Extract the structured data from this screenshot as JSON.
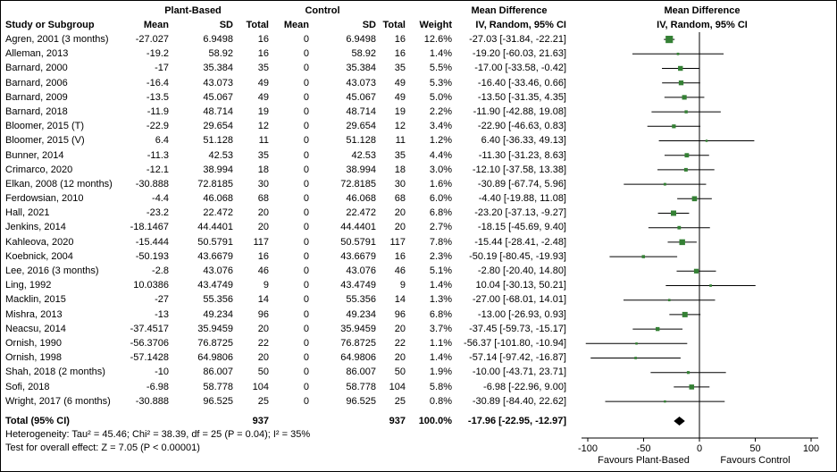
{
  "colors": {
    "background": "#ffffff",
    "marker_green": "#348034",
    "line_black": "#000000",
    "diamond_black": "#000000"
  },
  "header": {
    "group1": "Plant-Based",
    "group2": "Control",
    "mean_difference": "Mean Difference",
    "study_col": "Study or Subgroup",
    "mean": "Mean",
    "sd": "SD",
    "total": "Total",
    "weight": "Weight",
    "method_ci": "IV, Random, 95% CI"
  },
  "chart_data": {
    "type": "forest",
    "effect_measure": "Mean Difference",
    "method": "IV, Random, 95% CI",
    "axis": {
      "min": -100,
      "max": 100,
      "ticks": [
        -100,
        -50,
        0,
        50,
        100
      ],
      "left_label": "Favours Plant-Based",
      "right_label": "Favours Control"
    },
    "studies": [
      {
        "study": "Agren, 2001 (3 months)",
        "mean1": "-27.027",
        "sd1": "6.9498",
        "n1": "16",
        "mean2": "0",
        "sd2": "6.9498",
        "n2": "16",
        "weight": "12.6%",
        "w": 12.6,
        "est": -27.03,
        "lo": -31.84,
        "hi": -22.21,
        "ci_text": "-27.03 [-31.84, -22.21]"
      },
      {
        "study": "Alleman, 2013",
        "mean1": "-19.2",
        "sd1": "58.92",
        "n1": "16",
        "mean2": "0",
        "sd2": "58.92",
        "n2": "16",
        "weight": "1.4%",
        "w": 1.4,
        "est": -19.2,
        "lo": -60.03,
        "hi": 21.63,
        "ci_text": "-19.20 [-60.03, 21.63]"
      },
      {
        "study": "Barnard, 2000",
        "mean1": "-17",
        "sd1": "35.384",
        "n1": "35",
        "mean2": "0",
        "sd2": "35.384",
        "n2": "35",
        "weight": "5.5%",
        "w": 5.5,
        "est": -17.0,
        "lo": -33.58,
        "hi": -0.42,
        "ci_text": "-17.00 [-33.58, -0.42]"
      },
      {
        "study": "Barnard, 2006",
        "mean1": "-16.4",
        "sd1": "43.073",
        "n1": "49",
        "mean2": "0",
        "sd2": "43.073",
        "n2": "49",
        "weight": "5.3%",
        "w": 5.3,
        "est": -16.4,
        "lo": -33.46,
        "hi": 0.66,
        "ci_text": "-16.40 [-33.46, 0.66]"
      },
      {
        "study": "Barnard, 2009",
        "mean1": "-13.5",
        "sd1": "45.067",
        "n1": "49",
        "mean2": "0",
        "sd2": "45.067",
        "n2": "49",
        "weight": "5.0%",
        "w": 5.0,
        "est": -13.5,
        "lo": -31.35,
        "hi": 4.35,
        "ci_text": "-13.50 [-31.35, 4.35]"
      },
      {
        "study": "Barnard, 2018",
        "mean1": "-11.9",
        "sd1": "48.714",
        "n1": "19",
        "mean2": "0",
        "sd2": "48.714",
        "n2": "19",
        "weight": "2.2%",
        "w": 2.2,
        "est": -11.9,
        "lo": -42.88,
        "hi": 19.08,
        "ci_text": "-11.90 [-42.88, 19.08]"
      },
      {
        "study": "Bloomer, 2015 (T)",
        "mean1": "-22.9",
        "sd1": "29.654",
        "n1": "12",
        "mean2": "0",
        "sd2": "29.654",
        "n2": "12",
        "weight": "3.4%",
        "w": 3.4,
        "est": -22.9,
        "lo": -46.63,
        "hi": 0.83,
        "ci_text": "-22.90 [-46.63, 0.83]"
      },
      {
        "study": "Bloomer, 2015 (V)",
        "mean1": "6.4",
        "sd1": "51.128",
        "n1": "11",
        "mean2": "0",
        "sd2": "51.128",
        "n2": "11",
        "weight": "1.2%",
        "w": 1.2,
        "est": 6.4,
        "lo": -36.33,
        "hi": 49.13,
        "ci_text": "6.40 [-36.33, 49.13]"
      },
      {
        "study": "Bunner, 2014",
        "mean1": "-11.3",
        "sd1": "42.53",
        "n1": "35",
        "mean2": "0",
        "sd2": "42.53",
        "n2": "35",
        "weight": "4.4%",
        "w": 4.4,
        "est": -11.3,
        "lo": -31.23,
        "hi": 8.63,
        "ci_text": "-11.30 [-31.23, 8.63]"
      },
      {
        "study": "Crimarco, 2020",
        "mean1": "-12.1",
        "sd1": "38.994",
        "n1": "18",
        "mean2": "0",
        "sd2": "38.994",
        "n2": "18",
        "weight": "3.0%",
        "w": 3.0,
        "est": -12.1,
        "lo": -37.58,
        "hi": 13.38,
        "ci_text": "-12.10 [-37.58, 13.38]"
      },
      {
        "study": "Elkan, 2008 (12 months)",
        "mean1": "-30.888",
        "sd1": "72.8185",
        "n1": "30",
        "mean2": "0",
        "sd2": "72.8185",
        "n2": "30",
        "weight": "1.6%",
        "w": 1.6,
        "est": -30.89,
        "lo": -67.74,
        "hi": 5.96,
        "ci_text": "-30.89 [-67.74, 5.96]"
      },
      {
        "study": "Ferdowsian, 2010",
        "mean1": "-4.4",
        "sd1": "46.068",
        "n1": "68",
        "mean2": "0",
        "sd2": "46.068",
        "n2": "68",
        "weight": "6.0%",
        "w": 6.0,
        "est": -4.4,
        "lo": -19.88,
        "hi": 11.08,
        "ci_text": "-4.40 [-19.88, 11.08]"
      },
      {
        "study": "Hall, 2021",
        "mean1": "-23.2",
        "sd1": "22.472",
        "n1": "20",
        "mean2": "0",
        "sd2": "22.472",
        "n2": "20",
        "weight": "6.8%",
        "w": 6.8,
        "est": -23.2,
        "lo": -37.13,
        "hi": -9.27,
        "ci_text": "-23.20 [-37.13, -9.27]"
      },
      {
        "study": "Jenkins, 2014",
        "mean1": "-18.1467",
        "sd1": "44.4401",
        "n1": "20",
        "mean2": "0",
        "sd2": "44.4401",
        "n2": "20",
        "weight": "2.7%",
        "w": 2.7,
        "est": -18.15,
        "lo": -45.69,
        "hi": 9.4,
        "ci_text": "-18.15 [-45.69, 9.40]"
      },
      {
        "study": "Kahleova, 2020",
        "mean1": "-15.444",
        "sd1": "50.5791",
        "n1": "117",
        "mean2": "0",
        "sd2": "50.5791",
        "n2": "117",
        "weight": "7.8%",
        "w": 7.8,
        "est": -15.44,
        "lo": -28.41,
        "hi": -2.48,
        "ci_text": "-15.44 [-28.41, -2.48]"
      },
      {
        "study": "Koebnick, 2004",
        "mean1": "-50.193",
        "sd1": "43.6679",
        "n1": "16",
        "mean2": "0",
        "sd2": "43.6679",
        "n2": "16",
        "weight": "2.3%",
        "w": 2.3,
        "est": -50.19,
        "lo": -80.45,
        "hi": -19.93,
        "ci_text": "-50.19 [-80.45, -19.93]"
      },
      {
        "study": "Lee, 2016 (3 months)",
        "mean1": "-2.8",
        "sd1": "43.076",
        "n1": "46",
        "mean2": "0",
        "sd2": "43.076",
        "n2": "46",
        "weight": "5.1%",
        "w": 5.1,
        "est": -2.8,
        "lo": -20.4,
        "hi": 14.8,
        "ci_text": "-2.80 [-20.40, 14.80]"
      },
      {
        "study": "Ling, 1992",
        "mean1": "10.0386",
        "sd1": "43.4749",
        "n1": "9",
        "mean2": "0",
        "sd2": "43.4749",
        "n2": "9",
        "weight": "1.4%",
        "w": 1.4,
        "est": 10.04,
        "lo": -30.13,
        "hi": 50.21,
        "ci_text": "10.04 [-30.13, 50.21]"
      },
      {
        "study": "Macklin, 2015",
        "mean1": "-27",
        "sd1": "55.356",
        "n1": "14",
        "mean2": "0",
        "sd2": "55.356",
        "n2": "14",
        "weight": "1.3%",
        "w": 1.3,
        "est": -27.0,
        "lo": -68.01,
        "hi": 14.01,
        "ci_text": "-27.00 [-68.01, 14.01]"
      },
      {
        "study": "Mishra, 2013",
        "mean1": "-13",
        "sd1": "49.234",
        "n1": "96",
        "mean2": "0",
        "sd2": "49.234",
        "n2": "96",
        "weight": "6.8%",
        "w": 6.8,
        "est": -13.0,
        "lo": -26.93,
        "hi": 0.93,
        "ci_text": "-13.00 [-26.93, 0.93]"
      },
      {
        "study": "Neacsu, 2014",
        "mean1": "-37.4517",
        "sd1": "35.9459",
        "n1": "20",
        "mean2": "0",
        "sd2": "35.9459",
        "n2": "20",
        "weight": "3.7%",
        "w": 3.7,
        "est": -37.45,
        "lo": -59.73,
        "hi": -15.17,
        "ci_text": "-37.45 [-59.73, -15.17]"
      },
      {
        "study": "Ornish, 1990",
        "mean1": "-56.3706",
        "sd1": "76.8725",
        "n1": "22",
        "mean2": "0",
        "sd2": "76.8725",
        "n2": "22",
        "weight": "1.1%",
        "w": 1.1,
        "est": -56.37,
        "lo": -101.8,
        "hi": -10.94,
        "ci_text": "-56.37 [-101.80, -10.94]"
      },
      {
        "study": "Ornish, 1998",
        "mean1": "-57.1428",
        "sd1": "64.9806",
        "n1": "20",
        "mean2": "0",
        "sd2": "64.9806",
        "n2": "20",
        "weight": "1.4%",
        "w": 1.4,
        "est": -57.14,
        "lo": -97.42,
        "hi": -16.87,
        "ci_text": "-57.14 [-97.42, -16.87]"
      },
      {
        "study": "Shah, 2018 (2 months)",
        "mean1": "-10",
        "sd1": "86.007",
        "n1": "50",
        "mean2": "0",
        "sd2": "86.007",
        "n2": "50",
        "weight": "1.9%",
        "w": 1.9,
        "est": -10.0,
        "lo": -43.71,
        "hi": 23.71,
        "ci_text": "-10.00 [-43.71, 23.71]"
      },
      {
        "study": "Sofi, 2018",
        "mean1": "-6.98",
        "sd1": "58.778",
        "n1": "104",
        "mean2": "0",
        "sd2": "58.778",
        "n2": "104",
        "weight": "5.8%",
        "w": 5.8,
        "est": -6.98,
        "lo": -22.96,
        "hi": 9.0,
        "ci_text": "-6.98 [-22.96, 9.00]"
      },
      {
        "study": "Wright, 2017 (6 months)",
        "mean1": "-30.888",
        "sd1": "96.525",
        "n1": "25",
        "mean2": "0",
        "sd2": "96.525",
        "n2": "25",
        "weight": "0.8%",
        "w": 0.8,
        "est": -30.89,
        "lo": -84.4,
        "hi": 22.62,
        "ci_text": "-30.89 [-84.40, 22.62]"
      }
    ],
    "total": {
      "label": "Total (95% CI)",
      "n1": "937",
      "n2": "937",
      "weight": "100.0%",
      "est": -17.96,
      "lo": -22.95,
      "hi": -12.97,
      "ci_text": "-17.96 [-22.95, -12.97]"
    },
    "footnotes": {
      "heterogeneity": "Heterogeneity: Tau² = 45.46; Chi² = 38.39, df = 25 (P = 0.04); I² = 35%",
      "overall_effect": "Test for overall effect: Z = 7.05 (P < 0.00001)"
    }
  }
}
